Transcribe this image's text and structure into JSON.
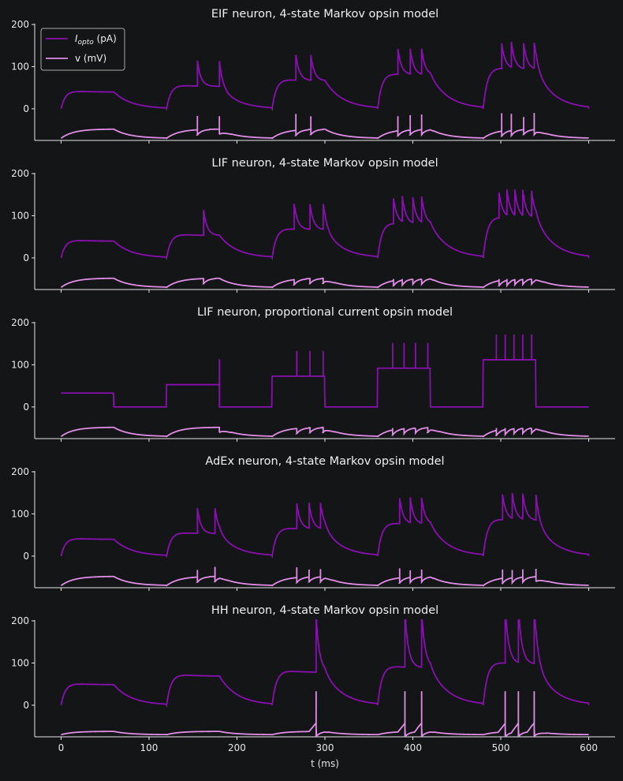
{
  "colors": {
    "background": "#131517",
    "iopto": "#8a0fb0",
    "v": "#e08de6",
    "axis": "#e8e8e8"
  },
  "legend": {
    "placement": "top-left of first panel",
    "iopto_symbol": "I",
    "iopto_subscript": "opto",
    "iopto_unit": "(pA)",
    "v_label": "v (mV)"
  },
  "xlabel": "t (ms)",
  "chart_data": [
    {
      "type": "line",
      "title": "EIF neuron, 4-state Markov opsin model",
      "xlim": [
        -30,
        630
      ],
      "ylim": [
        -75,
        200
      ],
      "yticks": [
        0,
        100,
        200
      ],
      "xticks": [
        0,
        100,
        200,
        300,
        400,
        500,
        600
      ],
      "opsin": "markov",
      "amp": [
        45,
        60,
        75,
        90,
        105
      ],
      "spikes": [
        [],
        [
          155,
          180
        ],
        [
          267,
          284
        ],
        [
          383,
          397,
          410
        ],
        [
          501,
          512,
          526,
          538
        ]
      ],
      "spike_height": 55,
      "spike_top": -15,
      "series": [
        {
          "name": "Iopto (pA)"
        },
        {
          "name": "v (mV)"
        }
      ]
    },
    {
      "type": "line",
      "title": "LIF neuron, 4-state Markov opsin model",
      "xlim": [
        -30,
        630
      ],
      "ylim": [
        -75,
        200
      ],
      "yticks": [
        0,
        100,
        200
      ],
      "xticks": [
        0,
        100,
        200,
        300,
        400,
        500,
        600
      ],
      "opsin": "markov",
      "amp": [
        45,
        60,
        75,
        90,
        105
      ],
      "spikes": [
        [],
        [
          162
        ],
        [
          265,
          283,
          298
        ],
        [
          378,
          388,
          400,
          410
        ],
        [
          498,
          507,
          516,
          525,
          535
        ]
      ],
      "spike_height": 0,
      "spike_top": -50,
      "series": [
        {
          "name": "Iopto (pA)"
        },
        {
          "name": "v (mV)"
        }
      ]
    },
    {
      "type": "line",
      "title": "LIF neuron, proportional current opsin model",
      "xlim": [
        -30,
        630
      ],
      "ylim": [
        -75,
        200
      ],
      "yticks": [
        0,
        100,
        200
      ],
      "xticks": [
        0,
        100,
        200,
        300,
        400,
        500,
        600
      ],
      "opsin": "proportional",
      "amp": [
        33,
        53,
        73,
        92,
        112
      ],
      "spikes": [
        [],
        [
          180
        ],
        [
          268,
          283,
          298
        ],
        [
          377,
          390,
          403,
          417
        ],
        [
          495,
          505,
          515,
          525,
          535
        ]
      ],
      "spike_height": 0,
      "spike_top": -50,
      "series": [
        {
          "name": "Iopto (pA)"
        },
        {
          "name": "v (mV)"
        }
      ]
    },
    {
      "type": "line",
      "title": "AdEx neuron, 4-state Markov opsin model",
      "xlim": [
        -30,
        630
      ],
      "ylim": [
        -75,
        200
      ],
      "yticks": [
        0,
        100,
        200
      ],
      "xticks": [
        0,
        100,
        200,
        300,
        400,
        500,
        600
      ],
      "opsin": "markov",
      "amp": [
        45,
        60,
        72,
        85,
        95
      ],
      "spikes": [
        [],
        [
          155,
          175
        ],
        [
          268,
          282,
          295
        ],
        [
          385,
          397,
          410
        ],
        [
          502,
          513,
          525,
          540
        ]
      ],
      "spike_height": 30,
      "spike_top": -30,
      "series": [
        {
          "name": "Iopto (pA)"
        },
        {
          "name": "v (mV)"
        }
      ]
    },
    {
      "type": "line",
      "title": "HH neuron, 4-state Markov opsin model",
      "xlim": [
        -30,
        630
      ],
      "ylim": [
        -75,
        200
      ],
      "yticks": [
        0,
        100,
        200
      ],
      "xticks": [
        0,
        100,
        200,
        300,
        400,
        500,
        600
      ],
      "opsin": "hh",
      "amp": [
        55,
        78,
        88,
        100,
        110
      ],
      "spikes": [
        [],
        [],
        [
          290
        ],
        [
          391,
          410
        ],
        [
          505,
          520,
          538
        ]
      ],
      "spike_height": 0,
      "spike_top": 33,
      "series": [
        {
          "name": "Iopto (pA)"
        },
        {
          "name": "v (mV)"
        }
      ]
    }
  ]
}
